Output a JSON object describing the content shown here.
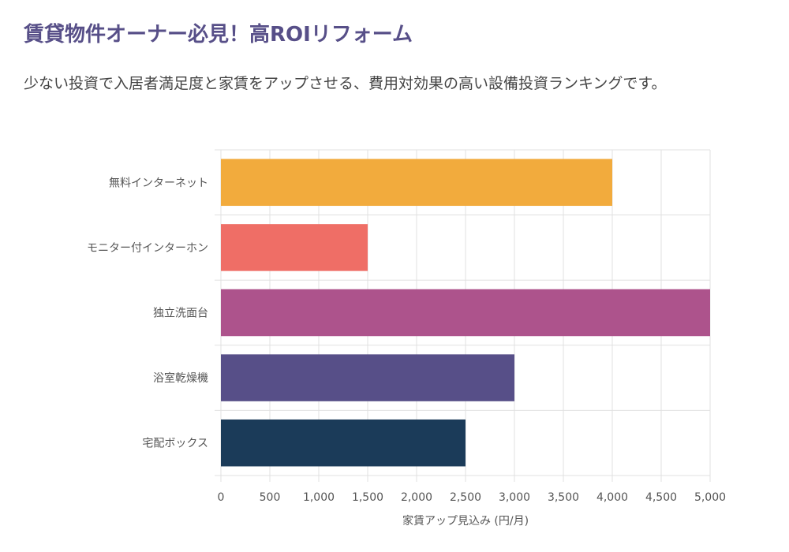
{
  "page": {
    "title": "賃貸物件オーナー必見！高ROIリフォーム",
    "subtitle": "少ない投資で入居者満足度と家賃をアップさせる、費用対効果の高い設備投資ランキングです。"
  },
  "chart_data": {
    "type": "bar",
    "orientation": "horizontal",
    "title": "",
    "xlabel": "家賃アップ見込み (円/月)",
    "ylabel": "",
    "xlim": [
      0,
      5000
    ],
    "x_ticks": [
      0,
      500,
      1000,
      1500,
      2000,
      2500,
      3000,
      3500,
      4000,
      4500,
      5000
    ],
    "x_tick_labels": [
      "0",
      "500",
      "1,000",
      "1,500",
      "2,000",
      "2,500",
      "3,000",
      "3,500",
      "4,000",
      "4,500",
      "5,000"
    ],
    "grid": true,
    "legend": "none",
    "categories": [
      "無料インターネット",
      "モニター付インターホン",
      "独立洗面台",
      "浴室乾燥機",
      "宅配ボックス"
    ],
    "values": [
      4000,
      1500,
      5000,
      3000,
      2500
    ],
    "colors": [
      "#f2ab3d",
      "#ef6e66",
      "#ad538c",
      "#574f88",
      "#1b3b59"
    ],
    "grid_color": "#e0e0e0",
    "label_color": "#555555"
  }
}
